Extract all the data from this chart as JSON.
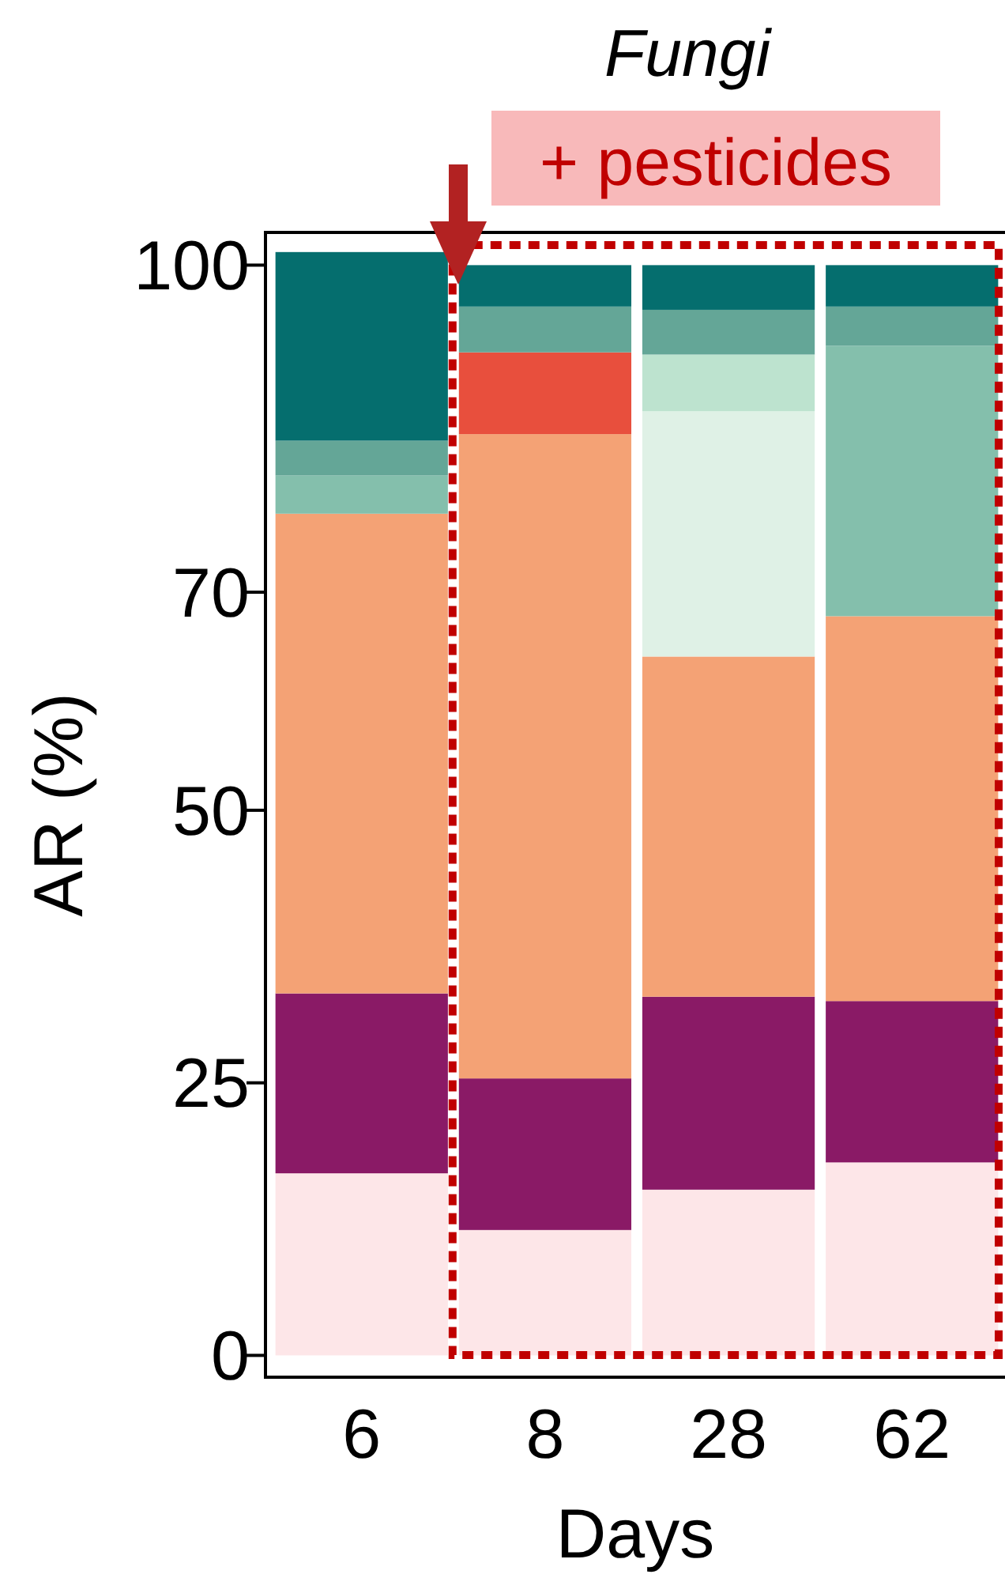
{
  "chart_data": {
    "type": "bar",
    "stacked": true,
    "title": "Fungi",
    "subtitle": "+ pesticides",
    "xlabel": "Days",
    "ylabel": "AR (%)",
    "categories": [
      "6",
      "8",
      "28",
      "62"
    ],
    "ylim": [
      -2,
      103
    ],
    "yticks": [
      0,
      25,
      50,
      70,
      100
    ],
    "series": [
      {
        "color": "#fde6e8",
        "values": [
          16.7,
          11.5,
          15.2,
          17.7
        ]
      },
      {
        "color": "#8a1a66",
        "values": [
          16.5,
          13.9,
          17.7,
          14.8
        ]
      },
      {
        "color": "#f4a275",
        "values": [
          44.0,
          59.1,
          31.2,
          35.3
        ]
      },
      {
        "color": "#e84f3d",
        "values": [
          0,
          7.5,
          0,
          0
        ]
      },
      {
        "color": "#dff1e6",
        "values": [
          0,
          0,
          22.5,
          0
        ]
      },
      {
        "color": "#bde3cf",
        "values": [
          0,
          0,
          5.2,
          0
        ]
      },
      {
        "color": "#84bfac",
        "values": [
          3.5,
          0,
          0,
          24.8
        ]
      },
      {
        "color": "#64a697",
        "values": [
          3.2,
          4.2,
          4.1,
          3.6
        ]
      },
      {
        "color": "#056e6e",
        "values": [
          17.3,
          3.8,
          4.1,
          3.8
        ]
      }
    ]
  }
}
